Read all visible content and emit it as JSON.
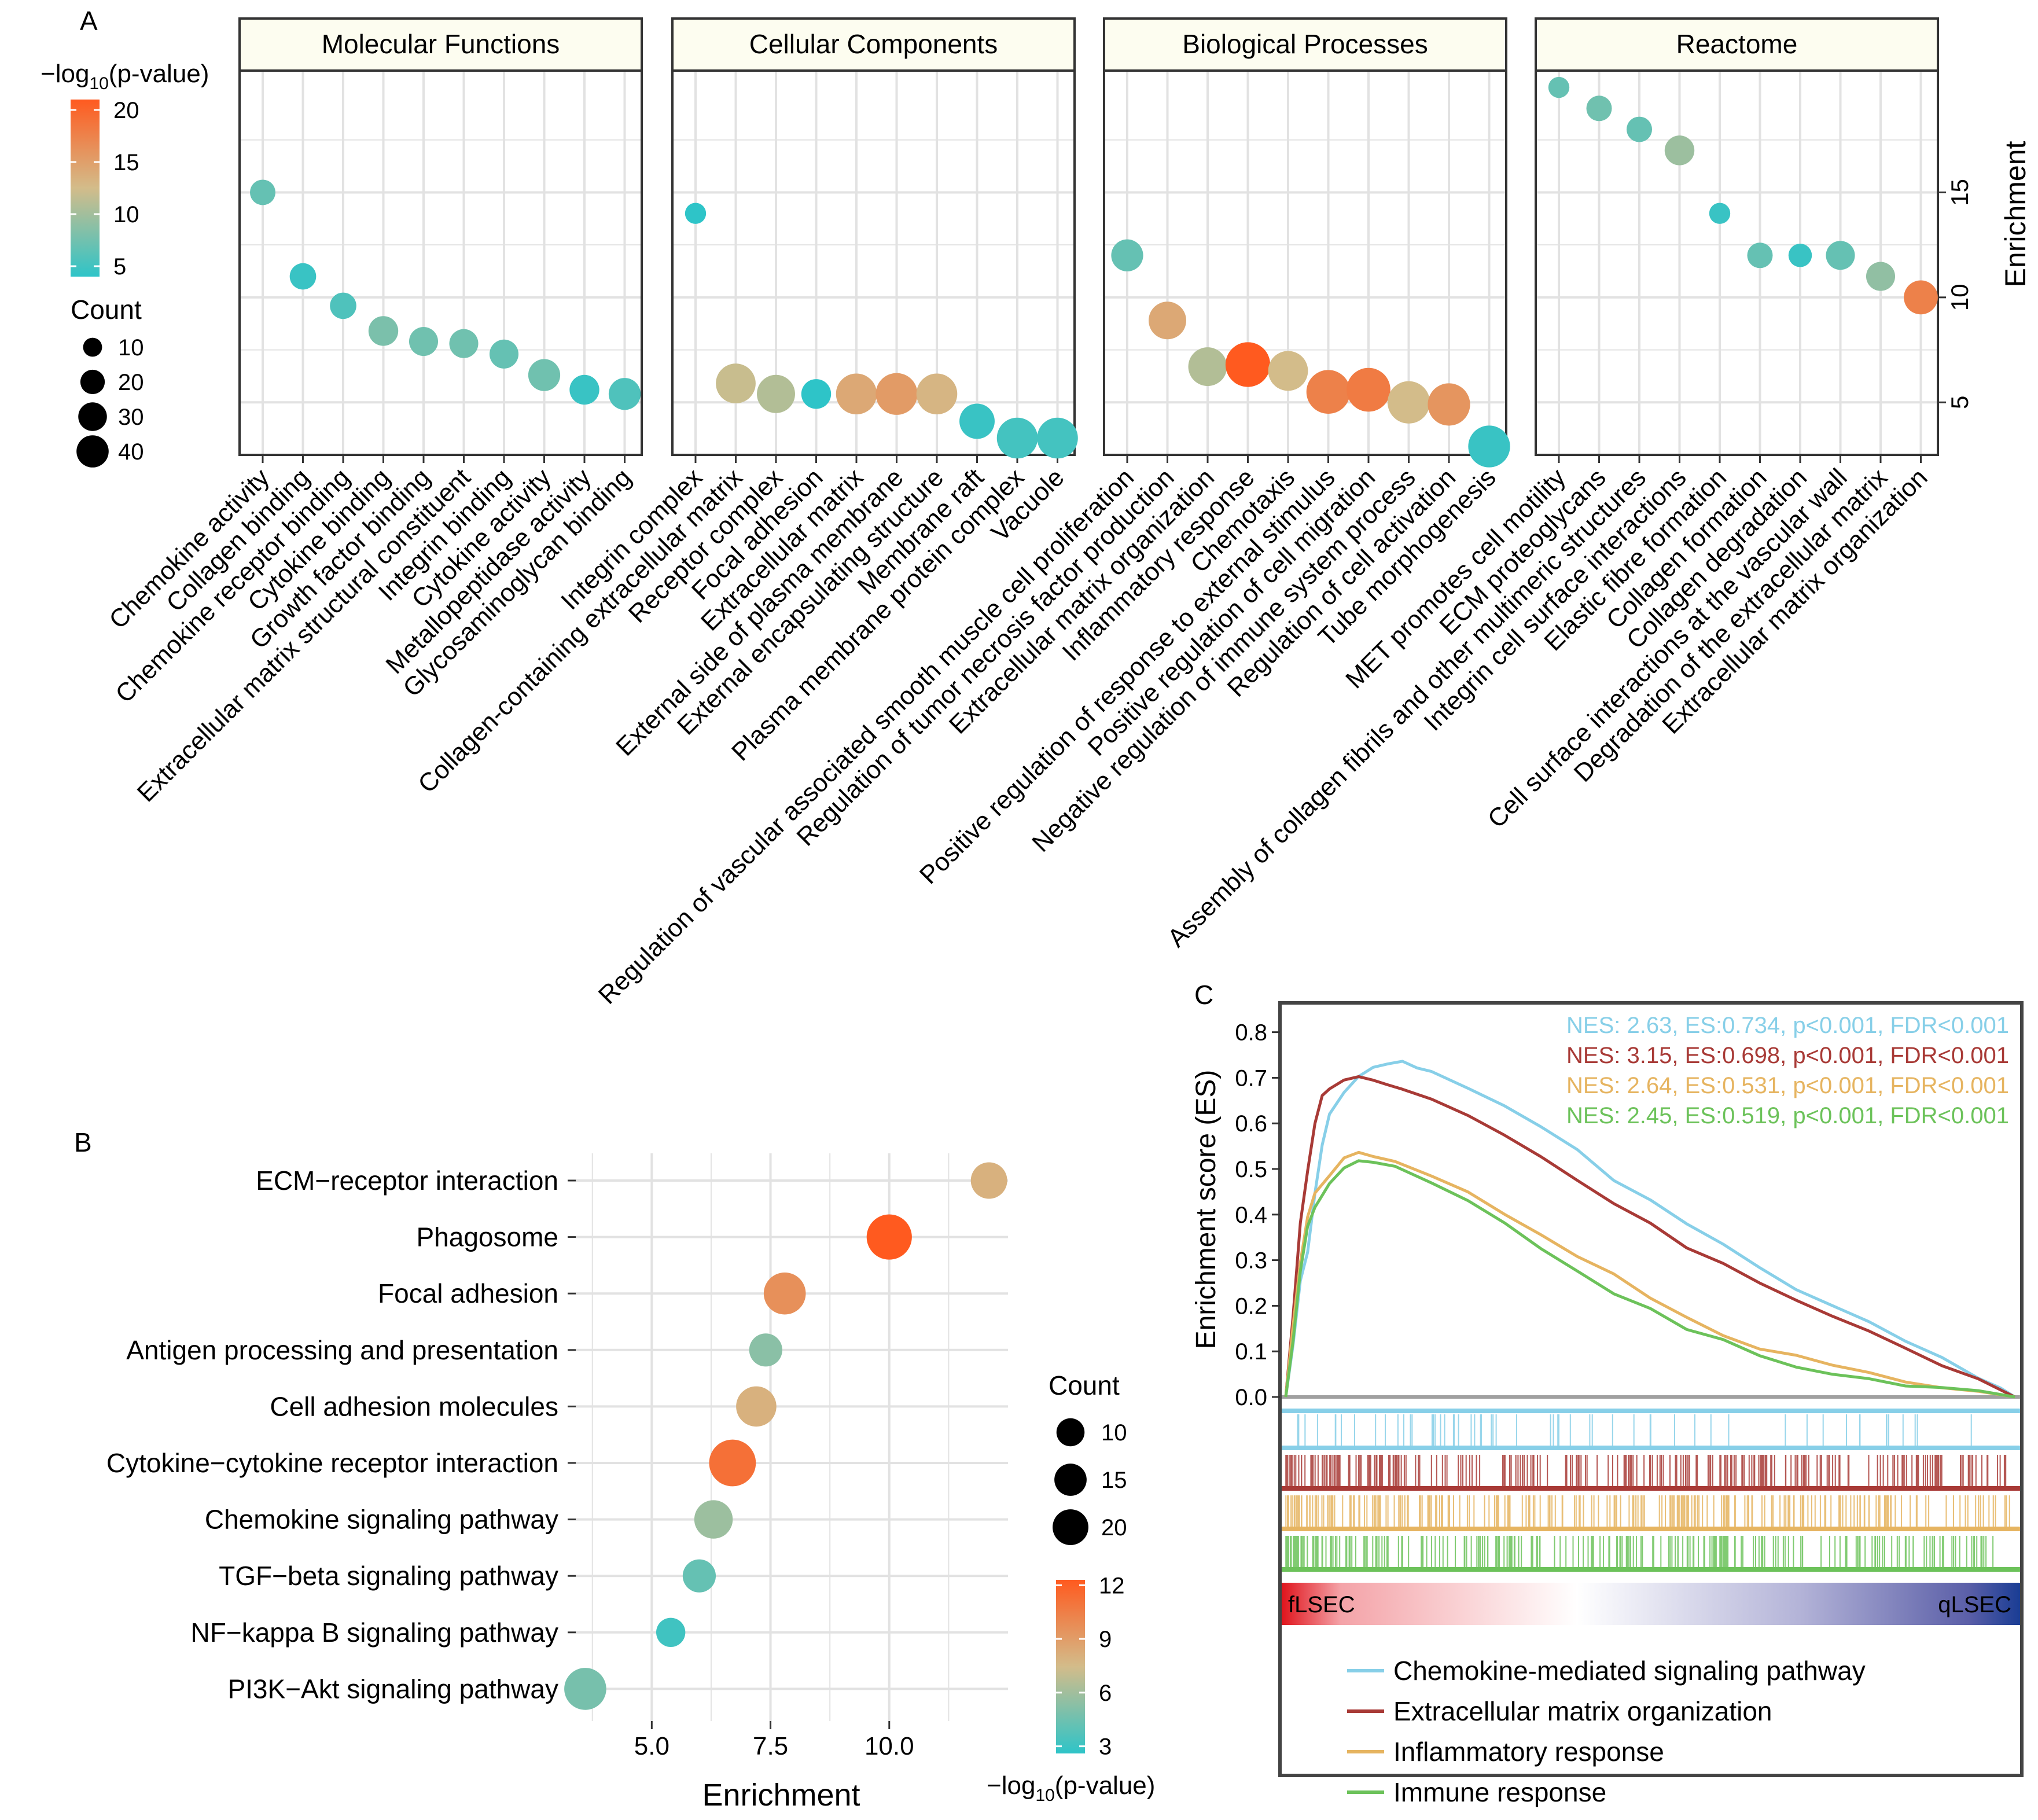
{
  "panel_labels": {
    "a": "A",
    "b": "B",
    "c": "C"
  },
  "colors": {
    "low": "#2ec4c8",
    "mid": "#d3bc8a",
    "high": "#ff5a1f",
    "grid": "#e2e2e2",
    "facet_strip": "#fdfdf0",
    "gsea_blue": "#87cfe8",
    "gsea_red": "#a83a36",
    "gsea_orange": "#e6b460",
    "gsea_green": "#6cc25a"
  },
  "chart_data": [
    {
      "id": "A",
      "type": "scatter",
      "title": "",
      "ylabel": "Enrichment",
      "ylim": [
        2.5,
        20.8
      ],
      "yticks": [
        5,
        10,
        15
      ],
      "color_legend": {
        "title_prefix": "−log",
        "title_sub": "10",
        "title_suffix": "(p-value)",
        "range": [
          5,
          20
        ],
        "ticks": [
          5,
          10,
          15,
          20
        ]
      },
      "size_legend": {
        "title": "Count",
        "values": [
          10,
          20,
          30,
          40
        ],
        "labels": [
          "10",
          "20",
          "30",
          "40"
        ]
      },
      "facets": [
        {
          "name": "Molecular Functions",
          "points": [
            {
              "term": "Chemokine activity",
              "enrichment": 15.0,
              "count": 9,
              "logp": 7.5
            },
            {
              "term": "Collagen binding",
              "enrichment": 11.0,
              "count": 10,
              "logp": 5.5
            },
            {
              "term": "Chemokine receptor binding",
              "enrichment": 9.6,
              "count": 10,
              "logp": 6.5
            },
            {
              "term": "Cytokine binding",
              "enrichment": 8.4,
              "count": 14,
              "logp": 8.5
            },
            {
              "term": "Growth factor binding",
              "enrichment": 7.9,
              "count": 13,
              "logp": 8.0
            },
            {
              "term": "Extracellular matrix structural constituent",
              "enrichment": 7.8,
              "count": 13,
              "logp": 8.0
            },
            {
              "term": "Integrin binding",
              "enrichment": 7.3,
              "count": 13,
              "logp": 7.5
            },
            {
              "term": "Cytokine activity",
              "enrichment": 6.3,
              "count": 17,
              "logp": 8.0
            },
            {
              "term": "Metallopeptidase activity",
              "enrichment": 5.6,
              "count": 14,
              "logp": 5.5
            },
            {
              "term": "Glycosaminoglycan binding",
              "enrichment": 5.4,
              "count": 17,
              "logp": 6.5
            }
          ]
        },
        {
          "name": "Cellular Components",
          "points": [
            {
              "term": "Integrin complex",
              "enrichment": 14.0,
              "count": 5,
              "logp": 5.0
            },
            {
              "term": "Collagen-containing extracellular matrix",
              "enrichment": 5.9,
              "count": 30,
              "logp": 12.0
            },
            {
              "term": "Receptor complex",
              "enrichment": 5.4,
              "count": 27,
              "logp": 11.0
            },
            {
              "term": "Focal adhesion",
              "enrichment": 5.4,
              "count": 14,
              "logp": 5.0
            },
            {
              "term": "Extracellular matrix",
              "enrichment": 5.4,
              "count": 32,
              "logp": 14.0
            },
            {
              "term": "External side of plasma membrane",
              "enrichment": 5.4,
              "count": 34,
              "logp": 15.0
            },
            {
              "term": "External encapsulating structure",
              "enrichment": 5.4,
              "count": 32,
              "logp": 13.0
            },
            {
              "term": "Membrane raft",
              "enrichment": 4.1,
              "count": 22,
              "logp": 5.5
            },
            {
              "term": "Plasma membrane protein complex",
              "enrichment": 3.3,
              "count": 32,
              "logp": 6.0
            },
            {
              "term": "Vacuole",
              "enrichment": 3.3,
              "count": 32,
              "logp": 6.0
            }
          ]
        },
        {
          "name": "Biological Processes",
          "points": [
            {
              "term": "Regulation of vascular associated smooth muscle cell proliferation",
              "enrichment": 12.0,
              "count": 17,
              "logp": 7.5
            },
            {
              "term": "Regulation of tumor necrosis factor production",
              "enrichment": 8.9,
              "count": 26,
              "logp": 14.0
            },
            {
              "term": "Extracellular matrix organization",
              "enrichment": 6.7,
              "count": 28,
              "logp": 11.0
            },
            {
              "term": "Inflammatory response",
              "enrichment": 6.8,
              "count": 40,
              "logp": 20.0
            },
            {
              "term": "Chemotaxis",
              "enrichment": 6.5,
              "count": 30,
              "logp": 12.5
            },
            {
              "term": "Positive regulation of response to external stimulus",
              "enrichment": 5.5,
              "count": 38,
              "logp": 17.0
            },
            {
              "term": "Positive regulation of cell migration",
              "enrichment": 5.6,
              "count": 38,
              "logp": 17.5
            },
            {
              "term": "Negative regulation of immune system process",
              "enrichment": 5.0,
              "count": 35,
              "logp": 12.5
            },
            {
              "term": "Regulation of cell activation",
              "enrichment": 4.9,
              "count": 35,
              "logp": 15.5
            },
            {
              "term": "Tube morphogenesis",
              "enrichment": 2.9,
              "count": 34,
              "logp": 5.5
            }
          ]
        },
        {
          "name": "Reactome",
          "points": [
            {
              "term": "MET promotes cell motility",
              "enrichment": 20.0,
              "count": 5,
              "logp": 7.5
            },
            {
              "term": "ECM proteoglycans",
              "enrichment": 19.0,
              "count": 9,
              "logp": 8.0
            },
            {
              "term": "Assembly of collagen fibrils and other multimeric structures",
              "enrichment": 18.0,
              "count": 9,
              "logp": 7.5
            },
            {
              "term": "Integrin cell surface interactions",
              "enrichment": 17.0,
              "count": 14,
              "logp": 10.0
            },
            {
              "term": "Elastic fibre formation",
              "enrichment": 14.0,
              "count": 5,
              "logp": 5.5
            },
            {
              "term": "Collagen formation",
              "enrichment": 12.0,
              "count": 9,
              "logp": 7.5
            },
            {
              "term": "Collagen degradation",
              "enrichment": 12.0,
              "count": 7,
              "logp": 5.5
            },
            {
              "term": "Cell surface interactions at the vascular wall",
              "enrichment": 12.0,
              "count": 13,
              "logp": 7.5
            },
            {
              "term": "Degradation of the extracellular matrix",
              "enrichment": 11.0,
              "count": 13,
              "logp": 9.5
            },
            {
              "term": "Extracellular matrix organization",
              "enrichment": 10.0,
              "count": 20,
              "logp": 17.0
            }
          ]
        }
      ]
    },
    {
      "id": "B",
      "type": "scatter",
      "xlabel": "Enrichment",
      "xlim": [
        3.4,
        12.5
      ],
      "xticks": [
        5.0,
        7.5,
        10.0
      ],
      "xtick_labels": [
        "5.0",
        "7.5",
        "10.0"
      ],
      "color_legend": {
        "title_prefix": "−log",
        "title_sub": "10",
        "title_suffix": "(p-value)",
        "range": [
          3,
          12
        ],
        "ticks": [
          3,
          6,
          9,
          12
        ]
      },
      "size_legend": {
        "title": "Count",
        "values": [
          10,
          15,
          20
        ],
        "labels": [
          "10",
          "15",
          "20"
        ]
      },
      "points": [
        {
          "term": "ECM−receptor interaction",
          "enrichment": 12.1,
          "count": 12,
          "logp": 8.0
        },
        {
          "term": "Phagosome",
          "enrichment": 10.0,
          "count": 22,
          "logp": 12.0
        },
        {
          "term": "Focal adhesion",
          "enrichment": 7.8,
          "count": 18,
          "logp": 9.5
        },
        {
          "term": "Antigen processing and presentation",
          "enrichment": 7.4,
          "count": 9,
          "logp": 5.5
        },
        {
          "term": "Cell adhesion molecules",
          "enrichment": 7.2,
          "count": 16,
          "logp": 8.0
        },
        {
          "term": "Cytokine−cytokine receptor interaction",
          "enrichment": 6.7,
          "count": 24,
          "logp": 11.0
        },
        {
          "term": "Chemokine signaling pathway",
          "enrichment": 6.3,
          "count": 14,
          "logp": 6.0
        },
        {
          "term": "TGF−beta signaling pathway",
          "enrichment": 6.0,
          "count": 9,
          "logp": 4.5
        },
        {
          "term": "NF−kappa B signaling pathway",
          "enrichment": 5.4,
          "count": 6,
          "logp": 3.5
        },
        {
          "term": "PI3K−Akt signaling pathway",
          "enrichment": 3.6,
          "count": 18,
          "logp": 5.0
        }
      ]
    },
    {
      "id": "C",
      "type": "line",
      "ylabel": "Enrichment score (ES)",
      "ylim": [
        0,
        0.83
      ],
      "yticks": [
        0.0,
        0.1,
        0.2,
        0.3,
        0.4,
        0.5,
        0.6,
        0.7,
        0.8
      ],
      "ytick_labels": [
        "0.0",
        "0.1",
        "0.2",
        "0.3",
        "0.4",
        "0.5",
        "0.6",
        "0.7",
        "0.8"
      ],
      "gradient_left": "fLSEC",
      "gradient_right": "qLSEC",
      "series": [
        {
          "name": "Chemokine-mediated signaling pathway",
          "stats": "NES: 2.63, ES:0.734, p<0.001, FDR<0.001",
          "color": "#87cfe8",
          "x": [
            0,
            0.01,
            0.02,
            0.03,
            0.04,
            0.05,
            0.06,
            0.08,
            0.1,
            0.12,
            0.14,
            0.16,
            0.18,
            0.2,
            0.25,
            0.3,
            0.35,
            0.4,
            0.45,
            0.5,
            0.55,
            0.6,
            0.65,
            0.7,
            0.75,
            0.8,
            0.85,
            0.9,
            0.95,
            0.98,
            1.0
          ],
          "y": [
            0,
            0.12,
            0.25,
            0.32,
            0.45,
            0.55,
            0.62,
            0.67,
            0.7,
            0.72,
            0.73,
            0.734,
            0.72,
            0.71,
            0.68,
            0.64,
            0.59,
            0.54,
            0.48,
            0.43,
            0.38,
            0.33,
            0.28,
            0.24,
            0.2,
            0.16,
            0.12,
            0.085,
            0.04,
            0.015,
            0
          ]
        },
        {
          "name": "Extracellular matrix organization",
          "stats": "NES: 3.15, ES:0.698, p<0.001, FDR<0.001",
          "color": "#a83a36",
          "x": [
            0,
            0.01,
            0.02,
            0.03,
            0.04,
            0.05,
            0.06,
            0.08,
            0.1,
            0.12,
            0.14,
            0.16,
            0.2,
            0.25,
            0.3,
            0.35,
            0.4,
            0.45,
            0.5,
            0.55,
            0.6,
            0.65,
            0.7,
            0.75,
            0.8,
            0.85,
            0.9,
            0.95,
            1.0
          ],
          "y": [
            0,
            0.18,
            0.38,
            0.5,
            0.6,
            0.66,
            0.68,
            0.69,
            0.698,
            0.69,
            0.68,
            0.67,
            0.65,
            0.62,
            0.58,
            0.53,
            0.48,
            0.43,
            0.38,
            0.33,
            0.29,
            0.25,
            0.21,
            0.18,
            0.14,
            0.11,
            0.07,
            0.035,
            0
          ]
        },
        {
          "name": "Inflammatory response",
          "stats": "NES: 2.64, ES:0.531, p<0.001, FDR<0.001",
          "color": "#e6b460",
          "x": [
            0,
            0.01,
            0.02,
            0.03,
            0.04,
            0.06,
            0.08,
            0.1,
            0.12,
            0.15,
            0.2,
            0.25,
            0.3,
            0.35,
            0.4,
            0.45,
            0.5,
            0.55,
            0.6,
            0.65,
            0.7,
            0.75,
            0.8,
            0.85,
            0.9,
            0.95,
            1.0
          ],
          "y": [
            0,
            0.15,
            0.3,
            0.4,
            0.45,
            0.48,
            0.52,
            0.531,
            0.53,
            0.52,
            0.49,
            0.45,
            0.4,
            0.36,
            0.31,
            0.27,
            0.22,
            0.18,
            0.14,
            0.11,
            0.09,
            0.07,
            0.05,
            0.03,
            0.02,
            0.01,
            0
          ]
        },
        {
          "name": "Immune response",
          "stats": "NES: 2.45, ES:0.519, p<0.001, FDR<0.001",
          "color": "#6cc25a",
          "x": [
            0,
            0.01,
            0.02,
            0.03,
            0.04,
            0.06,
            0.08,
            0.1,
            0.12,
            0.15,
            0.2,
            0.25,
            0.3,
            0.35,
            0.4,
            0.45,
            0.5,
            0.55,
            0.6,
            0.65,
            0.7,
            0.75,
            0.8,
            0.85,
            0.9,
            0.95,
            1.0
          ],
          "y": [
            0,
            0.12,
            0.28,
            0.37,
            0.42,
            0.47,
            0.5,
            0.519,
            0.515,
            0.5,
            0.47,
            0.43,
            0.38,
            0.33,
            0.28,
            0.23,
            0.19,
            0.15,
            0.12,
            0.09,
            0.07,
            0.05,
            0.04,
            0.03,
            0.02,
            0.01,
            0
          ]
        }
      ]
    }
  ]
}
